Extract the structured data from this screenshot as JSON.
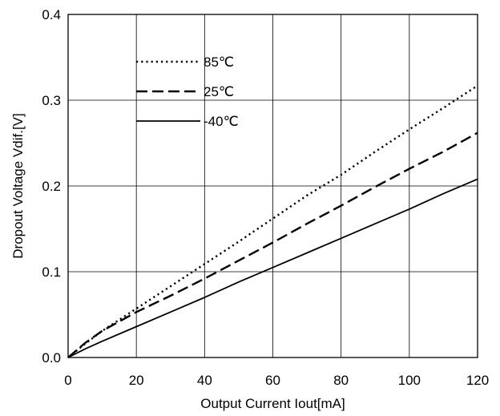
{
  "chart_data": {
    "type": "line",
    "xlabel": "Output Current Iout[mA]",
    "ylabel": "Dropout Voltage Vdif.[V]",
    "xlim": [
      0,
      120
    ],
    "ylim": [
      0,
      0.4
    ],
    "xticks": [
      0,
      20,
      40,
      60,
      80,
      100,
      120
    ],
    "yticks": [
      0.0,
      0.1,
      0.2,
      0.3,
      0.4
    ],
    "xtick_labels": [
      "0",
      "20",
      "40",
      "60",
      "80",
      "100",
      "120"
    ],
    "ytick_labels": [
      "0.0",
      "0.1",
      "0.2",
      "0.3",
      "0.4"
    ],
    "grid": true,
    "legend_position": "top-left",
    "series": [
      {
        "name": "85℃",
        "style": "dotted",
        "x": [
          0,
          5,
          10,
          20,
          30,
          40,
          50,
          60,
          70,
          80,
          90,
          100,
          110,
          120
        ],
        "y": [
          0,
          0.016,
          0.031,
          0.057,
          0.083,
          0.109,
          0.135,
          0.162,
          0.189,
          0.213,
          0.24,
          0.266,
          0.291,
          0.317
        ]
      },
      {
        "name": "25℃",
        "style": "dashed",
        "x": [
          0,
          5,
          10,
          20,
          30,
          40,
          50,
          60,
          70,
          80,
          90,
          100,
          110,
          120
        ],
        "y": [
          0,
          0.017,
          0.031,
          0.053,
          0.072,
          0.092,
          0.113,
          0.134,
          0.156,
          0.177,
          0.199,
          0.22,
          0.24,
          0.262
        ]
      },
      {
        "name": "-40℃",
        "style": "solid",
        "x": [
          0,
          5,
          10,
          20,
          30,
          40,
          50,
          60,
          70,
          80,
          90,
          100,
          110,
          120
        ],
        "y": [
          0,
          0.01,
          0.019,
          0.036,
          0.053,
          0.07,
          0.088,
          0.105,
          0.122,
          0.139,
          0.156,
          0.173,
          0.191,
          0.208
        ]
      }
    ]
  }
}
